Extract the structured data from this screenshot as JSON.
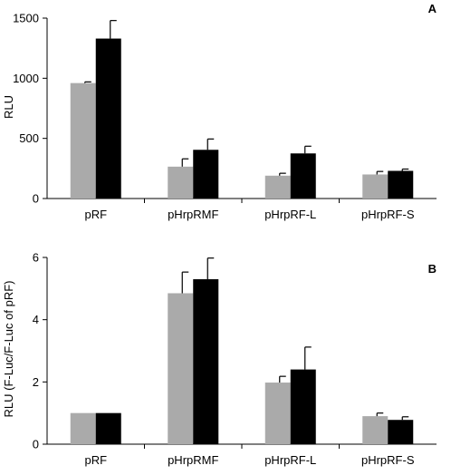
{
  "chart_data": [
    {
      "type": "bar",
      "panel_label": "A",
      "categories": [
        "pRF",
        "pHrpRMF",
        "pHrpRF-L",
        "pHrpRF-S"
      ],
      "series": [
        {
          "color": "#aaaaaa",
          "values": [
            960,
            265,
            190,
            200
          ],
          "errors": [
            10,
            65,
            20,
            25
          ]
        },
        {
          "color": "#000000",
          "values": [
            1330,
            405,
            375,
            230
          ],
          "errors": [
            150,
            90,
            60,
            15
          ]
        }
      ],
      "ylabel": "RLU",
      "ylim": [
        0,
        1500
      ],
      "yticks": [
        0,
        500,
        1000,
        1500
      ],
      "grid": false
    },
    {
      "type": "bar",
      "panel_label": "B",
      "categories": [
        "pRF",
        "pHrpRMF",
        "pHrpRF-L",
        "pHrpRF-S"
      ],
      "series": [
        {
          "color": "#aaaaaa",
          "values": [
            1.0,
            4.85,
            1.98,
            0.9
          ],
          "errors": [
            0,
            0.68,
            0.2,
            0.1
          ]
        },
        {
          "color": "#000000",
          "values": [
            1.0,
            5.3,
            2.4,
            0.78
          ],
          "errors": [
            0,
            0.68,
            0.72,
            0.1
          ]
        }
      ],
      "ylabel": "RLU (F-Luc/F-Luc of pRF)",
      "ylim": [
        0,
        6
      ],
      "yticks": [
        0,
        2,
        4,
        6
      ],
      "grid": false
    }
  ]
}
